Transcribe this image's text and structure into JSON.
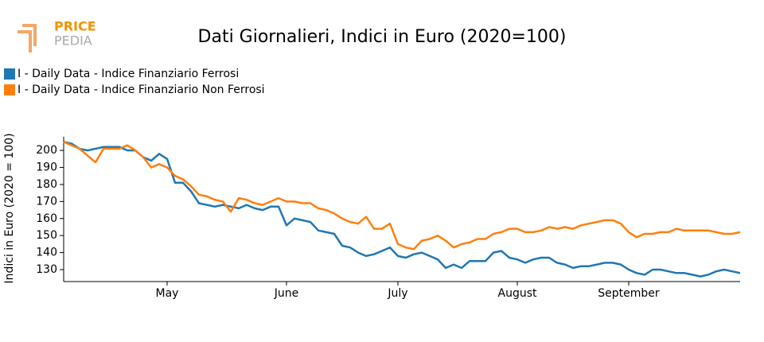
{
  "logo": {
    "top": "PRICE",
    "bottom": "PEDIA"
  },
  "chart_data": {
    "type": "line",
    "title": "Dati Giornalieri, Indici in Euro (2020=100)",
    "y_label": "Indici in Euro (2020 = 100)",
    "categories": [
      null,
      null,
      null,
      null,
      null,
      null,
      null,
      null,
      null,
      null,
      null,
      null,
      null,
      "May",
      null,
      null,
      null,
      null,
      null,
      null,
      null,
      null,
      null,
      null,
      null,
      null,
      null,
      null,
      "June",
      null,
      null,
      null,
      null,
      null,
      null,
      null,
      null,
      null,
      null,
      null,
      null,
      null,
      "July",
      null,
      null,
      null,
      null,
      null,
      null,
      null,
      null,
      null,
      null,
      null,
      null,
      null,
      null,
      "August",
      null,
      null,
      null,
      null,
      null,
      null,
      null,
      null,
      null,
      null,
      null,
      null,
      null,
      "September",
      null,
      null,
      null,
      null,
      null,
      null,
      null,
      null,
      null,
      null,
      null,
      null,
      null,
      null
    ],
    "series": [
      {
        "name": "I - Daily Data - Indice Finanziario Ferrosi",
        "color": "#1f77b4",
        "values": [
          205,
          204,
          201,
          200,
          201,
          202,
          202,
          202,
          200,
          200,
          196,
          194,
          198,
          195,
          181,
          181,
          176,
          169,
          168,
          167,
          168,
          167,
          166,
          168,
          166,
          165,
          167,
          167,
          156,
          160,
          159,
          158,
          153,
          152,
          151,
          144,
          143,
          140,
          138,
          139,
          141,
          143,
          138,
          137,
          139,
          140,
          138,
          136,
          131,
          133,
          131,
          135,
          135,
          135,
          140,
          141,
          137,
          136,
          134,
          136,
          137,
          137,
          134,
          133,
          131,
          132,
          132,
          133,
          134,
          134,
          133,
          130,
          128,
          127,
          130,
          130,
          129,
          128,
          128,
          127,
          126,
          127,
          129,
          130,
          129,
          128
        ]
      },
      {
        "name": "I - Daily Data - Indice Finanziario Non Ferrosi",
        "color": "#ff7f0e",
        "values": [
          205,
          203,
          201,
          197,
          193,
          201,
          201,
          201,
          203,
          200,
          196,
          190,
          192,
          190,
          185,
          183,
          179,
          174,
          173,
          171,
          170,
          164,
          172,
          171,
          169,
          168,
          170,
          172,
          170,
          170,
          169,
          169,
          166,
          165,
          163,
          160,
          158,
          157,
          161,
          154,
          154,
          157,
          145,
          143,
          142,
          147,
          148,
          150,
          147,
          143,
          145,
          146,
          148,
          148,
          151,
          152,
          154,
          154,
          152,
          152,
          153,
          155,
          154,
          155,
          154,
          156,
          157,
          158,
          159,
          159,
          157,
          152,
          149,
          151,
          151,
          152,
          152,
          154,
          153,
          153,
          153,
          153,
          152,
          151,
          151,
          152
        ]
      }
    ],
    "ylim": [
      123,
      208
    ],
    "yticks": [
      130,
      140,
      150,
      160,
      170,
      180,
      190,
      200
    ]
  }
}
